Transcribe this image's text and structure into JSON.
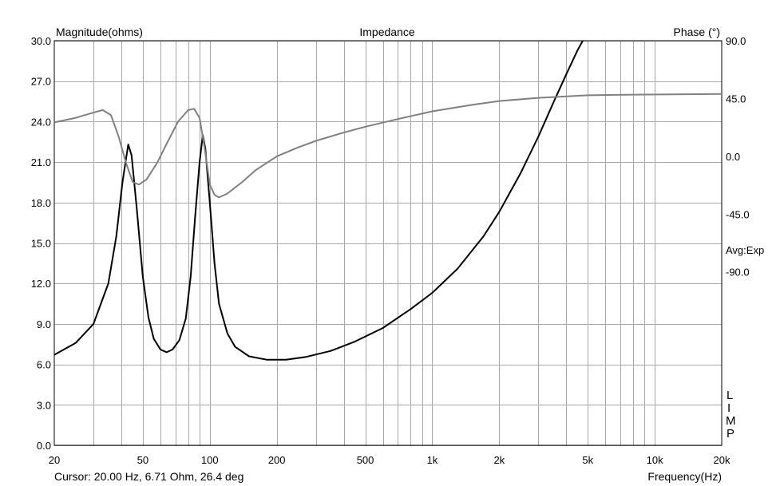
{
  "chart_data": {
    "type": "line",
    "title": "Impedance",
    "ylabel": "Magnitude(ohms)",
    "y2label": "Phase (°)",
    "xlabel": "Frequency(Hz)",
    "xscale": "log",
    "xlim": [
      20,
      20000
    ],
    "ylim": [
      0,
      30
    ],
    "y2lim": [
      -225,
      90
    ],
    "grid": true,
    "yticks": [
      "0.0",
      "3.0",
      "6.0",
      "9.0",
      "12.0",
      "15.0",
      "18.0",
      "21.0",
      "24.0",
      "27.0",
      "30.0"
    ],
    "y2ticks": [
      "90.0",
      "45.0",
      "0.0",
      "-45.0",
      "-90.0"
    ],
    "xticks": [
      {
        "v": 20,
        "label": "20"
      },
      {
        "v": 50,
        "label": "50"
      },
      {
        "v": 100,
        "label": "100"
      },
      {
        "v": 200,
        "label": "200"
      },
      {
        "v": 500,
        "label": "500"
      },
      {
        "v": 1000,
        "label": "1k"
      },
      {
        "v": 2000,
        "label": "2k"
      },
      {
        "v": 5000,
        "label": "5k"
      },
      {
        "v": 10000,
        "label": "10k"
      },
      {
        "v": 20000,
        "label": "20k"
      }
    ],
    "series": [
      {
        "axis": "left",
        "color": "#000000",
        "points": [
          [
            20,
            6.71
          ],
          [
            25,
            7.6
          ],
          [
            30,
            9.0
          ],
          [
            35,
            12.0
          ],
          [
            38,
            15.5
          ],
          [
            40.5,
            19.5
          ],
          [
            43,
            22.3
          ],
          [
            44.5,
            21.5
          ],
          [
            47,
            17.5
          ],
          [
            50,
            12.5
          ],
          [
            53,
            9.5
          ],
          [
            56,
            7.9
          ],
          [
            60,
            7.1
          ],
          [
            64,
            6.9
          ],
          [
            68,
            7.1
          ],
          [
            73,
            7.8
          ],
          [
            78,
            9.4
          ],
          [
            82,
            12.5
          ],
          [
            86,
            17.0
          ],
          [
            90,
            21.0
          ],
          [
            93,
            23.0
          ],
          [
            95.5,
            22.0
          ],
          [
            100,
            18.0
          ],
          [
            105,
            13.5
          ],
          [
            110,
            10.5
          ],
          [
            120,
            8.3
          ],
          [
            130,
            7.3
          ],
          [
            150,
            6.6
          ],
          [
            180,
            6.35
          ],
          [
            220,
            6.35
          ],
          [
            270,
            6.55
          ],
          [
            350,
            7.0
          ],
          [
            450,
            7.7
          ],
          [
            600,
            8.7
          ],
          [
            800,
            10.1
          ],
          [
            1000,
            11.3
          ],
          [
            1300,
            13.1
          ],
          [
            1700,
            15.5
          ],
          [
            2000,
            17.3
          ],
          [
            2500,
            20.2
          ],
          [
            3000,
            22.9
          ],
          [
            3500,
            25.4
          ],
          [
            4000,
            27.5
          ],
          [
            4500,
            29.3
          ],
          [
            4750,
            30.0
          ]
        ]
      },
      {
        "axis": "right",
        "color": "#808080",
        "points": [
          [
            20,
            26.4
          ],
          [
            25,
            30
          ],
          [
            30,
            34
          ],
          [
            33,
            36
          ],
          [
            36,
            32
          ],
          [
            39,
            15
          ],
          [
            42,
            -5
          ],
          [
            45,
            -20
          ],
          [
            48,
            -22
          ],
          [
            52,
            -18
          ],
          [
            58,
            -5
          ],
          [
            65,
            12
          ],
          [
            72,
            27
          ],
          [
            80,
            36
          ],
          [
            85,
            37
          ],
          [
            90,
            30
          ],
          [
            95,
            5
          ],
          [
            100,
            -22
          ],
          [
            105,
            -30
          ],
          [
            110,
            -32
          ],
          [
            120,
            -29
          ],
          [
            140,
            -20
          ],
          [
            160,
            -11
          ],
          [
            200,
            0
          ],
          [
            250,
            7
          ],
          [
            300,
            12
          ],
          [
            400,
            18.5
          ],
          [
            500,
            23
          ],
          [
            700,
            29
          ],
          [
            1000,
            35
          ],
          [
            1500,
            40
          ],
          [
            2000,
            43
          ],
          [
            3000,
            45.5
          ],
          [
            5000,
            47.5
          ],
          [
            8000,
            48
          ],
          [
            20000,
            48.5
          ]
        ]
      }
    ]
  },
  "side_texts": {
    "avg": "Avg:Exp",
    "limp": [
      "L",
      "I",
      "M",
      "P"
    ]
  },
  "footer": {
    "cursor": "Cursor: 20.00 Hz, 6.71 Ohm, 26.4 deg"
  }
}
